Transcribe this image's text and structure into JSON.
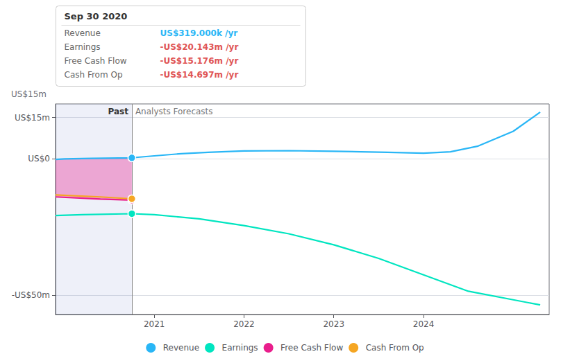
{
  "chart_data": {
    "type": "line",
    "xlim": [
      2019.9,
      2025.4
    ],
    "ylim": [
      -57,
      20
    ],
    "xticks": [
      2021,
      2022,
      2023,
      2024
    ],
    "yticks": [
      {
        "value": 15,
        "label": "US$15m"
      },
      {
        "value": 0,
        "label": "US$0"
      },
      {
        "value": -50,
        "label": "-US$50m"
      }
    ],
    "grid": true,
    "legend": "bottom",
    "divider": {
      "x": 2020.75,
      "left_label": "Past",
      "right_label": "Analysts Forecasts"
    },
    "annotations": [
      "US$15m"
    ],
    "tooltip": {
      "title": "Sep 30 2020",
      "rows": [
        {
          "label": "Revenue",
          "value": "US$319.000k /yr",
          "color": "#29b6f6"
        },
        {
          "label": "Earnings",
          "value": "-US$20.143m /yr",
          "color": "#e05555"
        },
        {
          "label": "Free Cash Flow",
          "value": "-US$15.176m /yr",
          "color": "#e05555"
        },
        {
          "label": "Cash From Op",
          "value": "-US$14.697m /yr",
          "color": "#e05555"
        }
      ]
    },
    "series": [
      {
        "name": "Revenue",
        "color": "#29b6f6",
        "type": "line",
        "x": [
          2019.9,
          2020.0,
          2020.3,
          2020.75,
          2021.0,
          2021.3,
          2021.6,
          2022.0,
          2022.5,
          2023.0,
          2023.3,
          2023.6,
          2024.0,
          2024.3,
          2024.6,
          2025.0,
          2025.3
        ],
        "values": [
          -0.3,
          -0.1,
          0.1,
          0.3,
          1.0,
          1.8,
          2.3,
          2.8,
          2.9,
          2.7,
          2.5,
          2.3,
          2.0,
          2.5,
          4.5,
          10.0,
          17.0
        ],
        "highlight": {
          "x": 2020.75,
          "y": 0.3
        }
      },
      {
        "name": "Earnings",
        "color": "#00e5c0",
        "type": "line",
        "x": [
          2019.9,
          2020.2,
          2020.75,
          2021.0,
          2021.5,
          2022.0,
          2022.5,
          2023.0,
          2023.5,
          2024.0,
          2024.5,
          2025.3
        ],
        "values": [
          -20.8,
          -20.5,
          -20.143,
          -20.5,
          -22.0,
          -24.5,
          -27.5,
          -31.5,
          -36.5,
          -42.5,
          -48.5,
          -53.5
        ],
        "highlight": {
          "x": 2020.75,
          "y": -20.143
        }
      },
      {
        "name": "Free Cash Flow",
        "color": "#e91e8c",
        "type": "area",
        "x": [
          2019.9,
          2020.4,
          2020.75
        ],
        "values": [
          -14.0,
          -14.8,
          -15.176
        ],
        "highlight": {
          "x": 2020.75,
          "y": -15.176
        }
      },
      {
        "name": "Cash From Op",
        "color": "#f5a623",
        "type": "line",
        "x": [
          2019.9,
          2020.4,
          2020.75
        ],
        "values": [
          -13.3,
          -14.0,
          -14.697
        ],
        "highlight": {
          "x": 2020.75,
          "y": -14.697
        }
      }
    ]
  }
}
